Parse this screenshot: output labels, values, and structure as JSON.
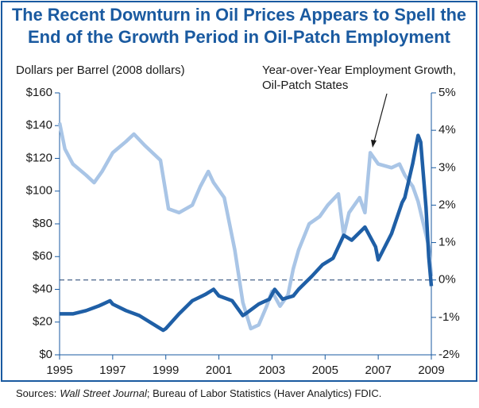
{
  "chart_data": {
    "type": "line",
    "title": [
      "The Recent Downturn in Oil Prices Appears to Spell the",
      "End of the Growth Period in Oil-Patch Employment"
    ],
    "y_label": "Dollars per Barrel (2008 dollars)",
    "annotation": [
      "Year-over-Year Employment Growth,",
      "Oil-Patch States"
    ],
    "source": {
      "prefix": "Sources:",
      "italic": "Wall Street Journal",
      "suffix": "; Bureau of Labor Statistics (Haver Analytics) FDIC."
    },
    "xlim": [
      1995,
      2009
    ],
    "xticks": [
      1995,
      1997,
      1999,
      2001,
      2003,
      2005,
      2007,
      2009
    ],
    "ylim": [
      0,
      160
    ],
    "yticks": [
      {
        "value": 0,
        "label": "$0"
      },
      {
        "value": 20,
        "label": "$20"
      },
      {
        "value": 40,
        "label": "$40"
      },
      {
        "value": 60,
        "label": "$60"
      },
      {
        "value": 80,
        "label": "$80"
      },
      {
        "value": 100,
        "label": "$100"
      },
      {
        "value": 120,
        "label": "$120"
      },
      {
        "value": 140,
        "label": "$140"
      },
      {
        "value": 160,
        "label": "$160"
      }
    ],
    "y2lim": [
      -2,
      5
    ],
    "y2ticks": [
      {
        "value": -2,
        "label": "-2%"
      },
      {
        "value": -1,
        "label": "-1%"
      },
      {
        "value": 0,
        "label": "0%"
      },
      {
        "value": 1,
        "label": "1%"
      },
      {
        "value": 2,
        "label": "2%"
      },
      {
        "value": 3,
        "label": "3%"
      },
      {
        "value": 4,
        "label": "4%"
      },
      {
        "value": 5,
        "label": "5%"
      }
    ],
    "y2_zero_line": true,
    "series": [
      {
        "color": "#a9c5e6",
        "axis": "y2",
        "x": [
          1995,
          1995.2,
          1995.5,
          1996,
          1996.3,
          1996.6,
          1997,
          1997.5,
          1997.8,
          1998.2,
          1998.8,
          1999.1,
          1999.5,
          2000,
          2000.3,
          2000.6,
          2000.8,
          2001.2,
          2001.6,
          2001.9,
          2002.2,
          2002.5,
          2002.8,
          2003,
          2003.3,
          2003.6,
          2003.8,
          2004,
          2004.4,
          2004.8,
          2005.1,
          2005.5,
          2005.7,
          2005.9,
          2006.3,
          2006.5,
          2006.7,
          2007,
          2007.5,
          2007.8,
          2008,
          2008.3,
          2008.5,
          2008.7,
          2008.9,
          2009
        ],
        "values": [
          4.2,
          3.5,
          3.1,
          2.8,
          2.6,
          2.9,
          3.4,
          3.7,
          3.9,
          3.6,
          3.2,
          1.9,
          1.8,
          2.0,
          2.5,
          2.9,
          2.6,
          2.2,
          0.8,
          -0.6,
          -1.3,
          -1.2,
          -0.7,
          -0.3,
          -0.7,
          -0.4,
          0.3,
          0.8,
          1.5,
          1.7,
          2.0,
          2.3,
          1.2,
          1.8,
          2.2,
          1.8,
          3.4,
          3.1,
          3.0,
          3.1,
          2.8,
          2.5,
          2.1,
          1.5,
          0.9,
          0.1
        ]
      },
      {
        "color": "#1f5fa6",
        "axis": "y",
        "x": [
          1995,
          1995.5,
          1996,
          1996.5,
          1996.9,
          1997,
          1997.5,
          1998,
          1998.5,
          1998.9,
          1999,
          1999.5,
          2000,
          2000.5,
          2000.8,
          2001,
          2001.5,
          2001.9,
          2002,
          2002.5,
          2002.9,
          2003.1,
          2003.4,
          2003.8,
          2004,
          2004.5,
          2004.9,
          2005.3,
          2005.7,
          2006,
          2006.5,
          2006.9,
          2007,
          2007.5,
          2007.9,
          2008,
          2008.3,
          2008.5,
          2008.6,
          2008.8,
          2008.9,
          2009
        ],
        "values": [
          25,
          25,
          27,
          30,
          33,
          31,
          27,
          24,
          19,
          15,
          16,
          25,
          33,
          37,
          40,
          36,
          33,
          24,
          25,
          31,
          34,
          40,
          34,
          36,
          40,
          48,
          55,
          59,
          73,
          70,
          78,
          66,
          58,
          74,
          93,
          96,
          117,
          134,
          130,
          90,
          60,
          42
        ]
      }
    ]
  }
}
